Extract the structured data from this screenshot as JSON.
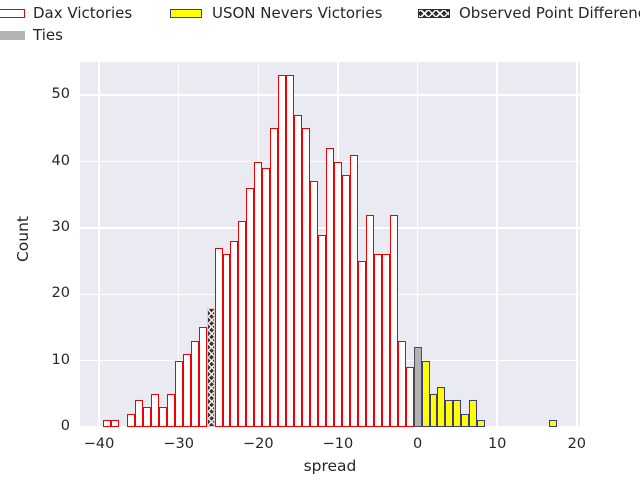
{
  "legend": {
    "items": [
      {
        "label": "Dax Victories",
        "style": "red-outline"
      },
      {
        "label": "USON Nevers Victories",
        "style": "yellow"
      },
      {
        "label": "Observed Point Difference",
        "style": "hatch"
      },
      {
        "label": "Ties",
        "style": "gray"
      }
    ]
  },
  "chart_data": {
    "type": "bar",
    "subtype": "histogram",
    "title": "",
    "xlabel": "spread",
    "ylabel": "Count",
    "xlim": [
      -42.4,
      20.4
    ],
    "ylim": [
      0,
      55
    ],
    "xticks": [
      -40,
      -30,
      -20,
      -10,
      0,
      10,
      20
    ],
    "yticks": [
      0,
      10,
      20,
      30,
      40,
      50
    ],
    "bin_width": 1,
    "grid": true,
    "legend_position": "top",
    "colors": {
      "plot_background": "#eaeaf2",
      "grid": "#ffffff",
      "red_edge": "#ee0000",
      "yellow_fill": "#ffff00",
      "yellow_edge": "#3a3a85",
      "gray_fill": "#b3b3b3",
      "hatch_fill": "#3a3a3a",
      "hatch_edge": "#eec6c6",
      "text": "#262626"
    },
    "series": [
      {
        "name": "Dax Victories",
        "style": "red-outline",
        "points": [
          [
            -39,
            1
          ],
          [
            -38,
            1
          ],
          [
            -36,
            2
          ],
          [
            -35,
            4
          ],
          [
            -34,
            3
          ],
          [
            -33,
            5
          ],
          [
            -32,
            3
          ],
          [
            -31,
            5
          ],
          [
            -30,
            10
          ],
          [
            -29,
            11
          ],
          [
            -28,
            13
          ],
          [
            -27,
            15
          ],
          [
            -25,
            27
          ],
          [
            -24,
            26
          ],
          [
            -23,
            28
          ],
          [
            -22,
            31
          ],
          [
            -21,
            36
          ],
          [
            -20,
            40
          ],
          [
            -19,
            39
          ],
          [
            -18,
            45
          ],
          [
            -17,
            53
          ],
          [
            -16,
            53
          ],
          [
            -15,
            47
          ],
          [
            -14,
            45
          ],
          [
            -13,
            37
          ],
          [
            -12,
            29
          ],
          [
            -11,
            42
          ],
          [
            -10,
            40
          ],
          [
            -9,
            38
          ],
          [
            -8,
            41
          ],
          [
            -7,
            25
          ],
          [
            -6,
            32
          ],
          [
            -5,
            26
          ],
          [
            -4,
            26
          ],
          [
            -3,
            32
          ],
          [
            -2,
            13
          ],
          [
            -1,
            9
          ]
        ]
      },
      {
        "name": "Observed Point Difference",
        "style": "hatch",
        "points": [
          [
            -26,
            18
          ]
        ]
      },
      {
        "name": "Ties",
        "style": "gray",
        "points": [
          [
            0,
            12
          ]
        ]
      },
      {
        "name": "USON Nevers Victories",
        "style": "yellow",
        "points": [
          [
            1,
            10
          ],
          [
            2,
            5
          ],
          [
            3,
            6
          ],
          [
            4,
            4
          ],
          [
            5,
            4
          ],
          [
            6,
            2
          ],
          [
            7,
            4
          ],
          [
            8,
            1
          ],
          [
            17,
            1
          ]
        ]
      }
    ]
  }
}
